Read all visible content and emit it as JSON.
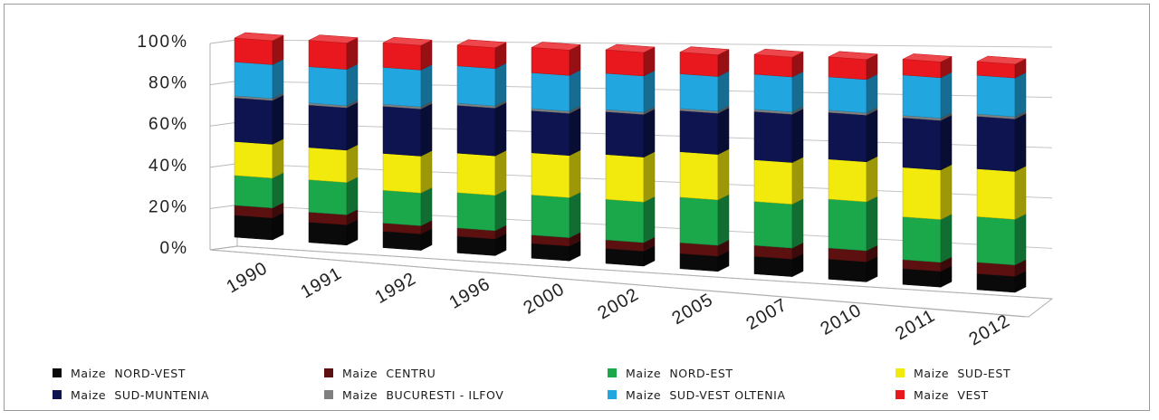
{
  "chart_data": {
    "type": "bar",
    "stacking": "percent",
    "view": "3d",
    "title": "",
    "xlabel": "",
    "ylabel": "",
    "ylim": [
      0,
      100
    ],
    "y_ticks": [
      "0%",
      "20%",
      "40%",
      "60%",
      "80%",
      "100%"
    ],
    "grid": true,
    "legend_position": "bottom",
    "categories": [
      "1990",
      "1991",
      "1992",
      "1996",
      "2000",
      "2002",
      "2005",
      "2007",
      "2010",
      "2011",
      "2012"
    ],
    "series": [
      {
        "name": "Maize  NORD-VEST",
        "color": "#0a0a0a",
        "values": [
          11,
          10,
          8,
          8,
          7,
          7,
          7,
          8,
          9,
          7,
          7
        ]
      },
      {
        "name": "Maize  CENTRU",
        "color": "#5c1010",
        "values": [
          5,
          5,
          4,
          4,
          4,
          4,
          5,
          5,
          5,
          4,
          5
        ]
      },
      {
        "name": "Maize  NORD-EST",
        "color": "#1aa84b",
        "values": [
          15,
          16,
          16,
          17,
          19,
          19,
          21,
          20,
          22,
          19,
          20
        ]
      },
      {
        "name": "Maize  SUD-EST",
        "color": "#f2ea0c",
        "values": [
          17,
          16,
          18,
          19,
          20,
          21,
          21,
          19,
          18,
          22,
          21
        ]
      },
      {
        "name": "Maize  SUD-MUNTENIA",
        "color": "#0d1450",
        "values": [
          22,
          21,
          23,
          23,
          20,
          20,
          19,
          22,
          21,
          22,
          23
        ]
      },
      {
        "name": "Maize  BUCURESTI - ILFOV",
        "color": "#808080",
        "values": [
          1,
          1,
          1,
          1,
          1,
          1,
          1,
          1,
          1,
          1,
          1
        ]
      },
      {
        "name": "Maize  SUD-VEST OLTENIA",
        "color": "#22a6df",
        "values": [
          17,
          18,
          18,
          18,
          17,
          17,
          16,
          16,
          15,
          18,
          17
        ]
      },
      {
        "name": "Maize  VEST",
        "color": "#e8181e",
        "values": [
          12,
          13,
          12,
          10,
          12,
          11,
          10,
          9,
          9,
          7,
          6
        ]
      }
    ]
  }
}
